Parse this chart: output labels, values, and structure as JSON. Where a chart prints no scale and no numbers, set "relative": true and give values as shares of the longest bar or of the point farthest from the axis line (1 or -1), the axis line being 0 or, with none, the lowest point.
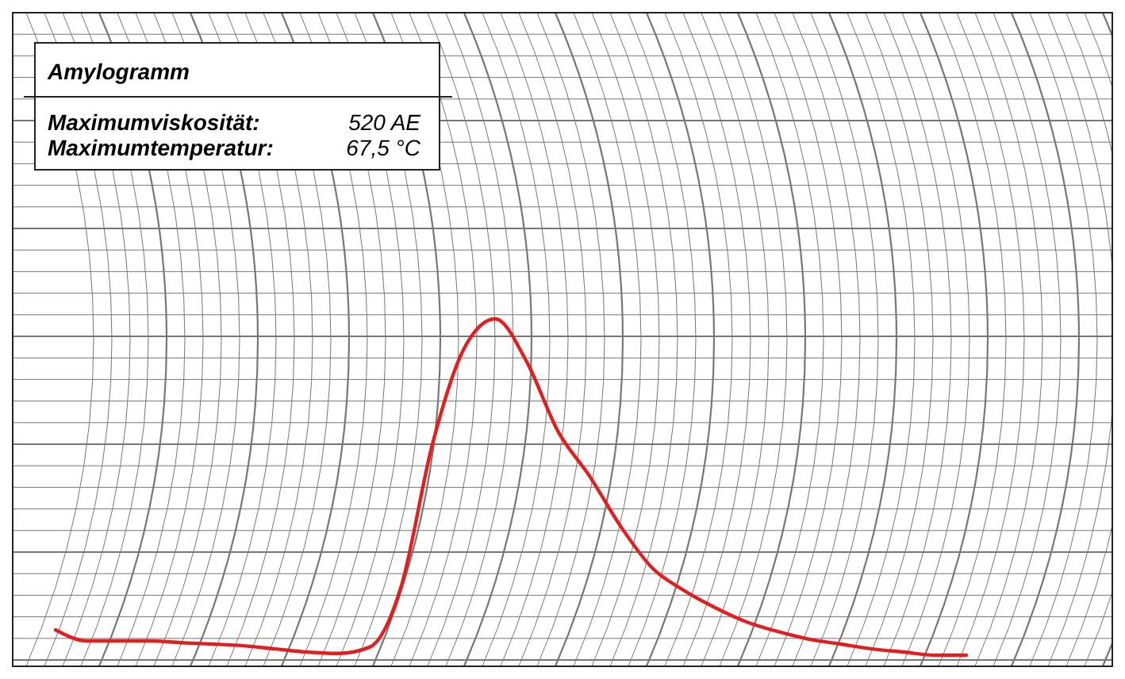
{
  "chart_data": {
    "type": "line",
    "title": "Amylogramm",
    "relative": true,
    "grid": true,
    "line_style": "solid",
    "marker": "none",
    "annotations": [
      "Maximumviskosität:",
      "520 AE",
      "Maximumtemperatur:",
      "67,5 °C"
    ],
    "categories": [
      null,
      null,
      null,
      null,
      null,
      null,
      null,
      null,
      null,
      null,
      null,
      null,
      null,
      null,
      null,
      null,
      null,
      null,
      null,
      null,
      null,
      null,
      null,
      null,
      null,
      null,
      null,
      null,
      null,
      null
    ],
    "series": [
      {
        "color": "#e02020",
        "values": [
          0.105,
          0.073,
          0.073,
          0.073,
          0.068,
          0.064,
          0.059,
          0.05,
          0.041,
          0.037,
          0.055,
          0.228,
          0.639,
          0.913,
          1,
          0.877,
          0.676,
          0.548,
          0.402,
          0.283,
          0.219,
          0.169,
          0.128,
          0.1,
          0.078,
          0.064,
          0.05,
          0.041,
          0.032,
          0.032
        ]
      }
    ]
  }
}
